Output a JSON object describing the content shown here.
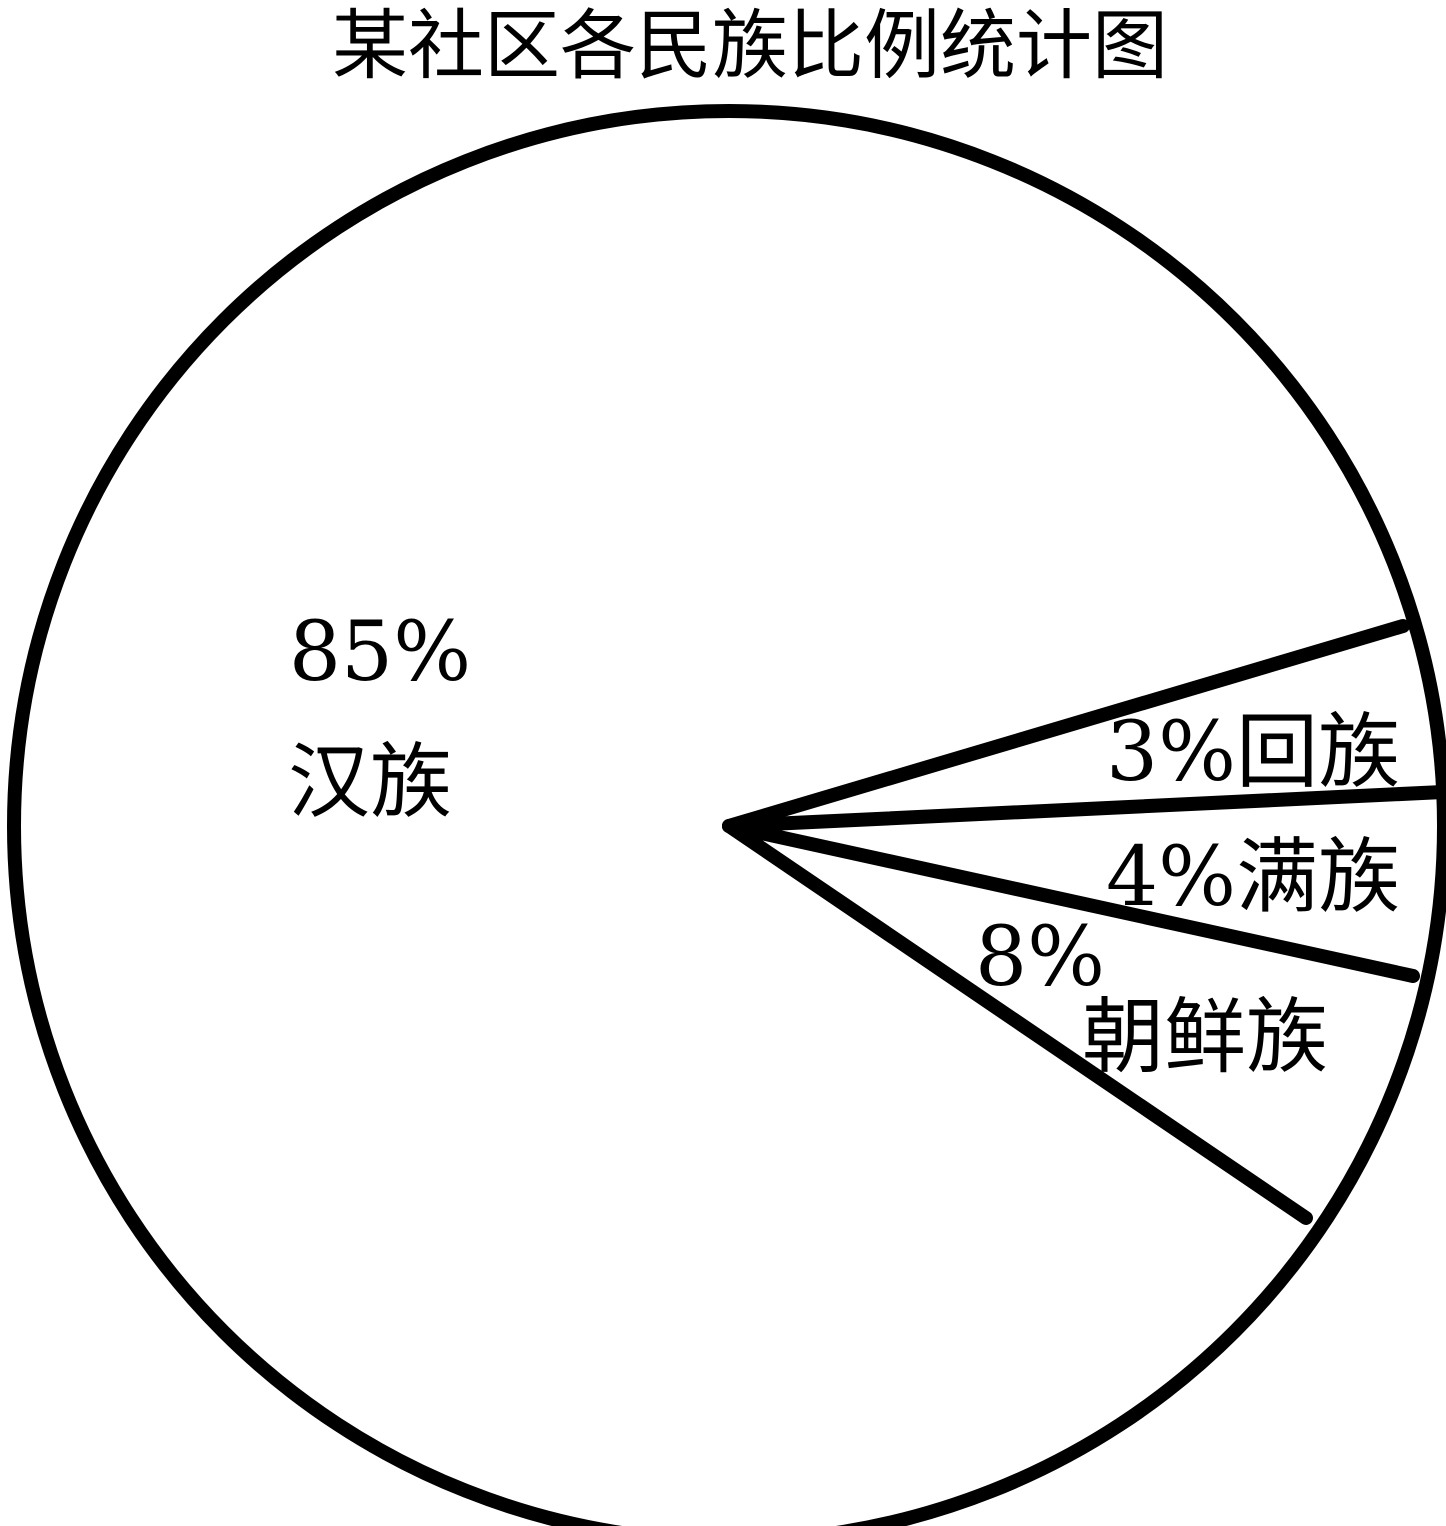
{
  "chart_data": {
    "type": "pie",
    "title": "某社区各民族比例统计图",
    "slices": [
      {
        "name": "汉族",
        "value": 85,
        "label": "85%"
      },
      {
        "name": "回族",
        "value": 3,
        "label": "3%"
      },
      {
        "name": "满族",
        "value": 4,
        "label": "4%"
      },
      {
        "name": "朝鲜族",
        "value": 8,
        "label": "8%"
      }
    ],
    "colors": {
      "fill": "#ffffff",
      "stroke": "#000000"
    }
  }
}
